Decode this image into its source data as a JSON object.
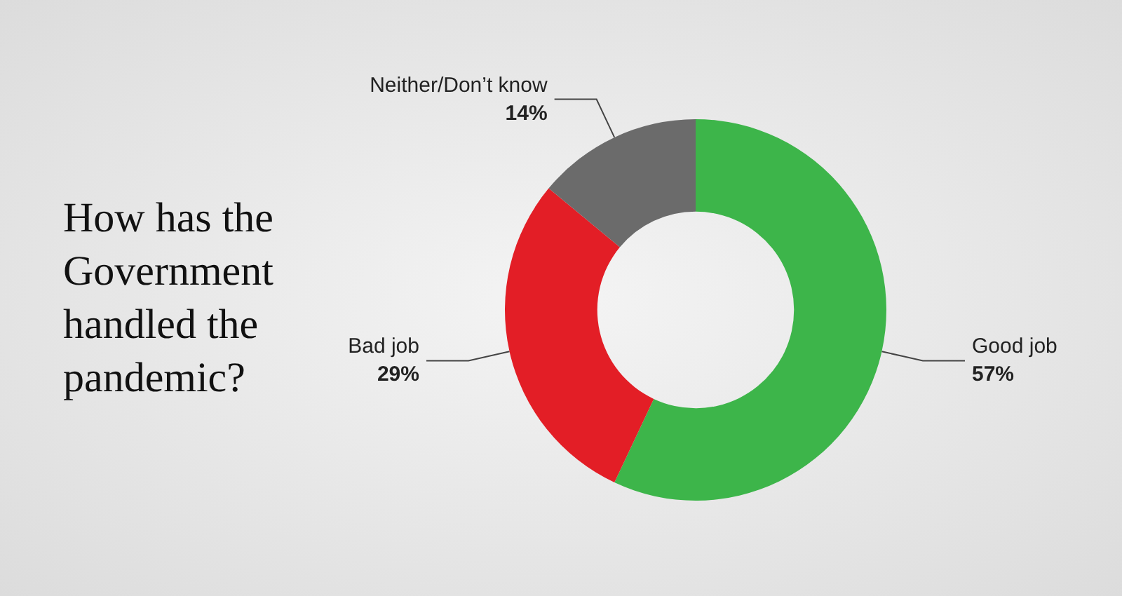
{
  "chart_data": {
    "type": "donut",
    "title": "How has the Government handled the pandemic?",
    "categories": [
      "Good job",
      "Bad job",
      "Neither/Don’t know"
    ],
    "values": [
      57,
      29,
      14
    ],
    "value_labels": [
      "57%",
      "29%",
      "14%"
    ],
    "colors": [
      "#3db54a",
      "#e31e26",
      "#6b6b6b"
    ],
    "legend": false
  }
}
